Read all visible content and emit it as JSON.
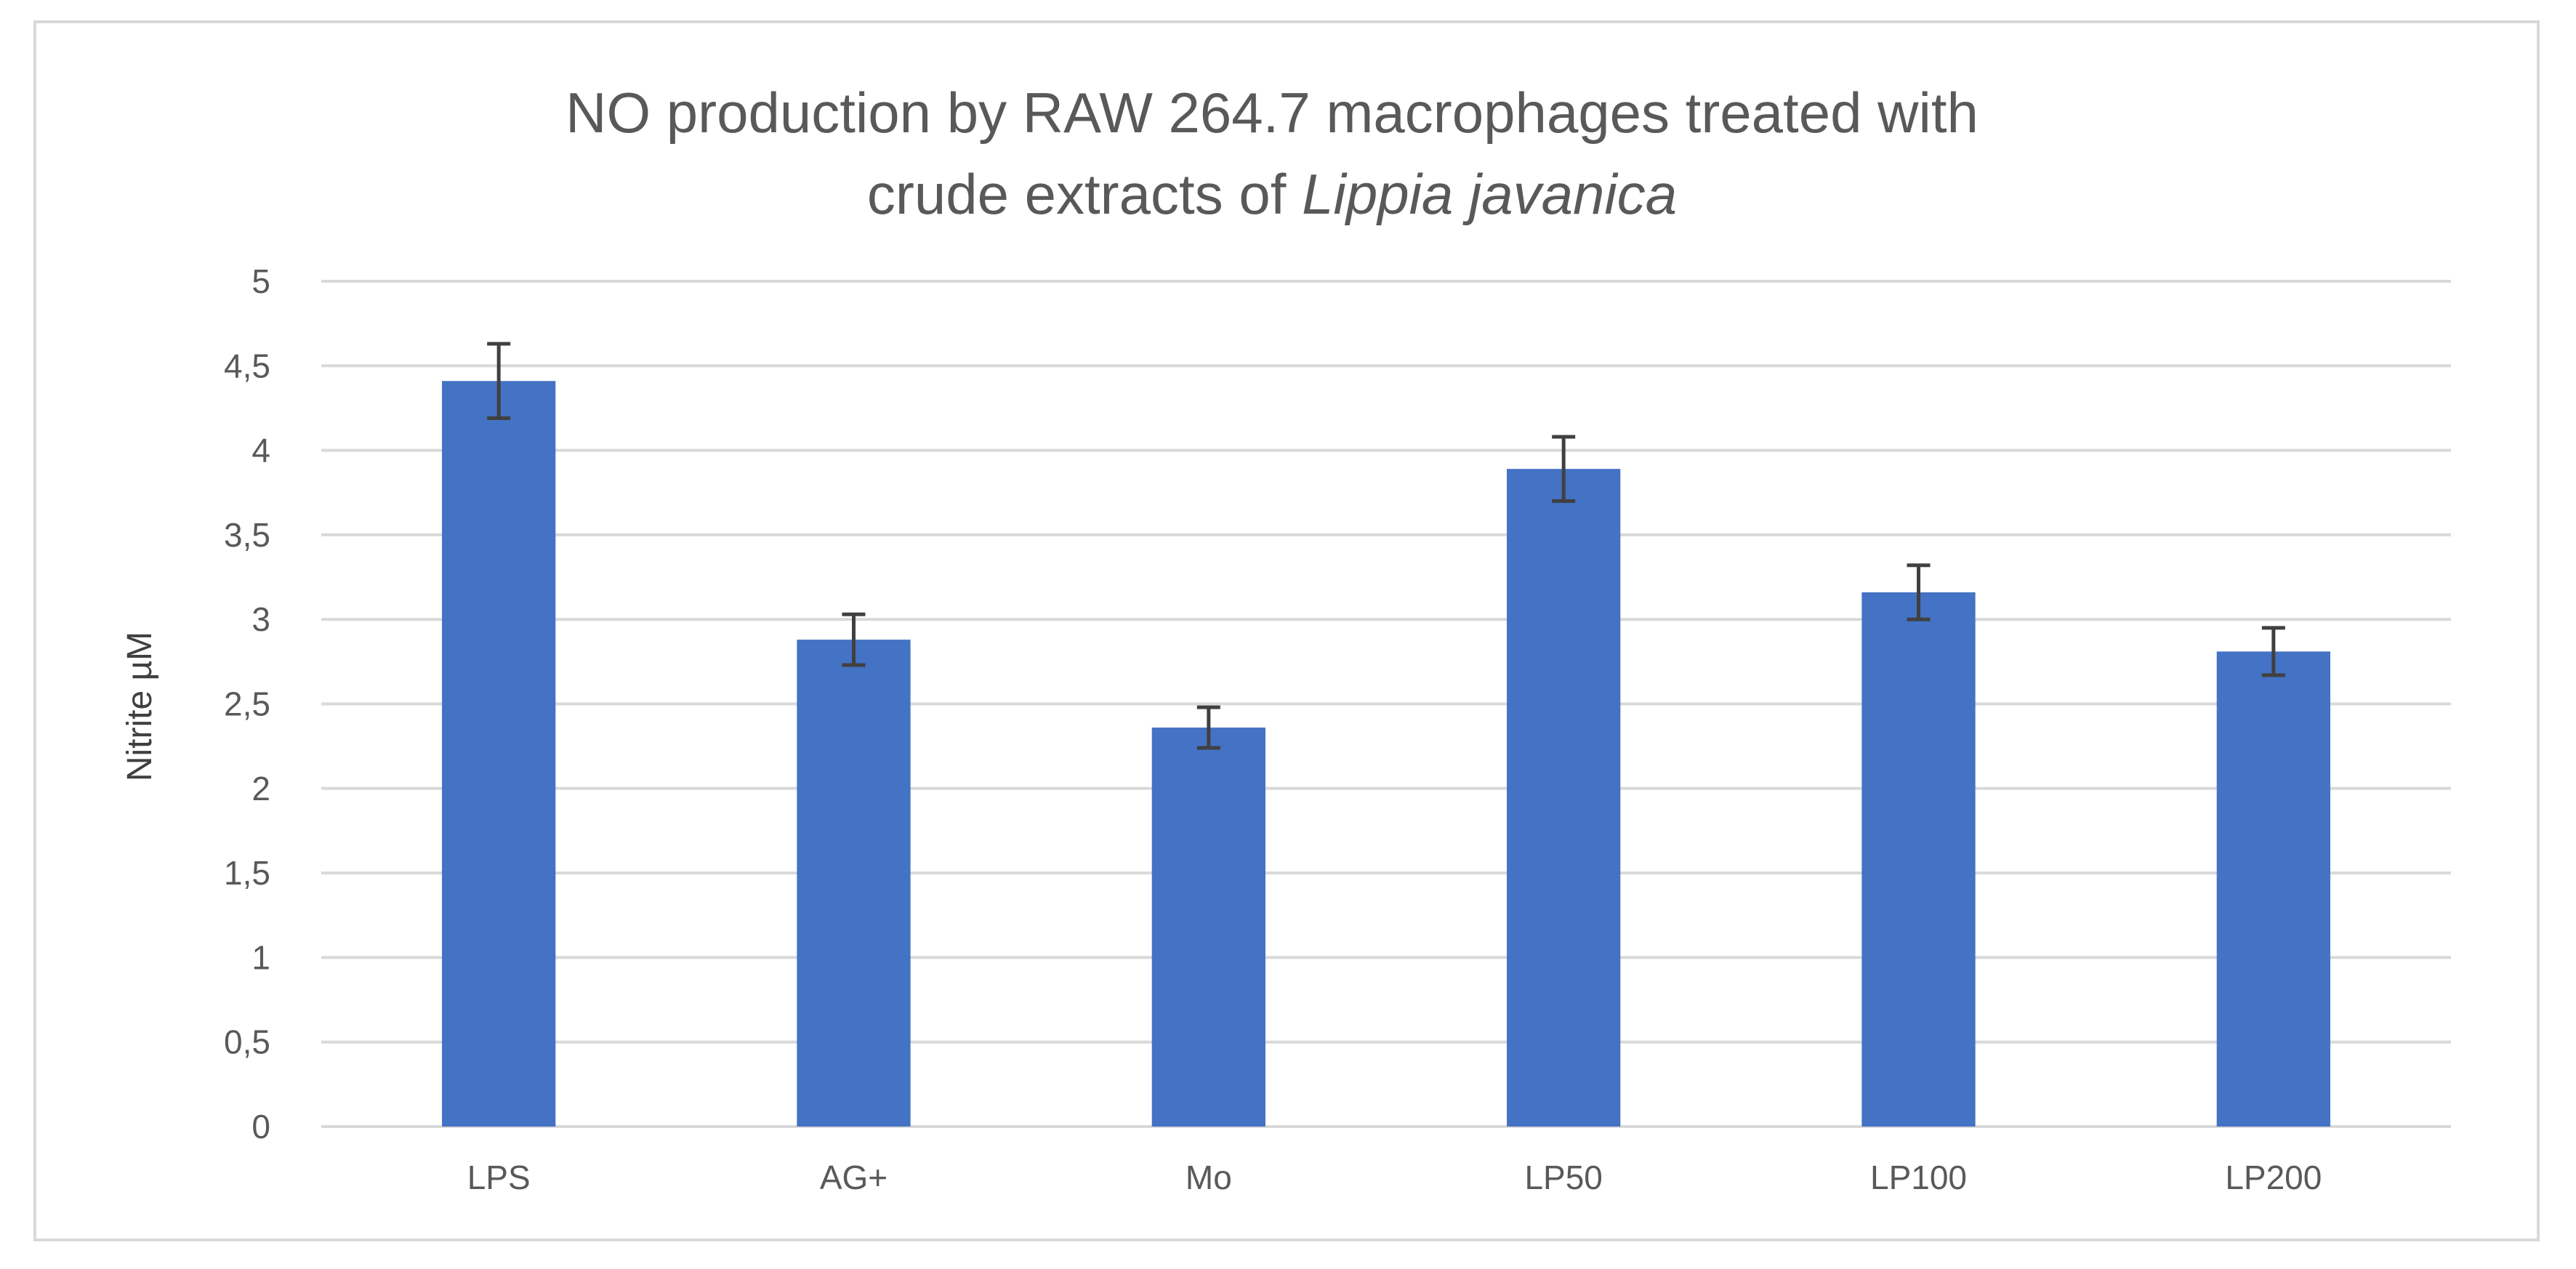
{
  "chart_data": {
    "type": "bar",
    "title_line1": "NO production by RAW 264.7 macrophages treated with",
    "title_line2_prefix": "crude extracts of ",
    "title_line2_italic": "Lippia javanica",
    "xlabel": "",
    "ylabel": "Nitrite µM",
    "ylim": [
      0,
      5
    ],
    "yticks": [
      "0",
      "0,5",
      "1",
      "1,5",
      "2",
      "2,5",
      "3",
      "3,5",
      "4",
      "4,5",
      "5"
    ],
    "grid": true,
    "categories": [
      "LPS",
      "AG+",
      "Mo",
      "LP50",
      "LP100",
      "LP200"
    ],
    "values": [
      4.41,
      2.88,
      2.36,
      3.89,
      3.16,
      2.81
    ],
    "errors": [
      0.22,
      0.15,
      0.12,
      0.19,
      0.16,
      0.14
    ],
    "bar_color": "#4472c4",
    "grid_color": "#d9d9d9",
    "error_color": "#404040"
  }
}
